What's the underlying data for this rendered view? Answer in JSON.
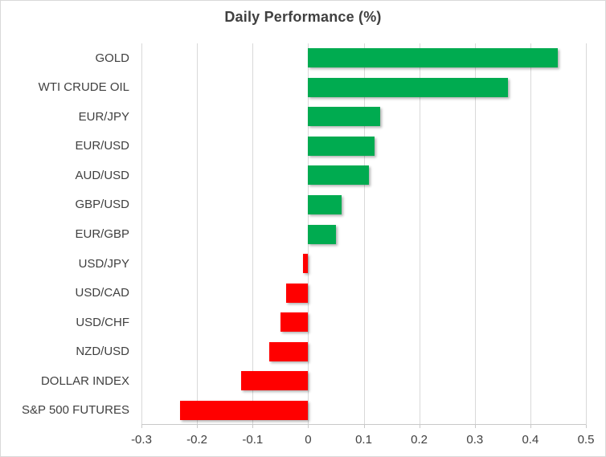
{
  "chart_data": {
    "type": "bar",
    "orientation": "horizontal",
    "title": "Daily Performance (%)",
    "categories": [
      "GOLD",
      "WTI CRUDE OIL",
      "EUR/JPY",
      "EUR/USD",
      "AUD/USD",
      "GBP/USD",
      "EUR/GBP",
      "USD/JPY",
      "USD/CAD",
      "USD/CHF",
      "NZD/USD",
      "DOLLAR INDEX",
      "S&P 500 FUTURES"
    ],
    "values": [
      0.45,
      0.36,
      0.13,
      0.12,
      0.11,
      0.06,
      0.05,
      -0.01,
      -0.04,
      -0.05,
      -0.07,
      -0.12,
      -0.23
    ],
    "xlabel": "",
    "ylabel": "",
    "xlim": [
      -0.3,
      0.5
    ],
    "x_ticks": [
      -0.3,
      -0.2,
      -0.1,
      0,
      0.1,
      0.2,
      0.3,
      0.4,
      0.5
    ],
    "x_tick_labels": [
      "-0.3",
      "-0.2",
      "-0.1",
      "0",
      "0.1",
      "0.2",
      "0.3",
      "0.4",
      "0.5"
    ],
    "grid": "vertical-on",
    "legend": "none",
    "colors": {
      "positive": "#00AB50",
      "negative": "#FF0000",
      "gridline": "#D9D9D9",
      "axis_line": "#C9C9C9",
      "text": "#404040",
      "background": "#FFFFFF",
      "border": "#D9D9D9"
    }
  }
}
